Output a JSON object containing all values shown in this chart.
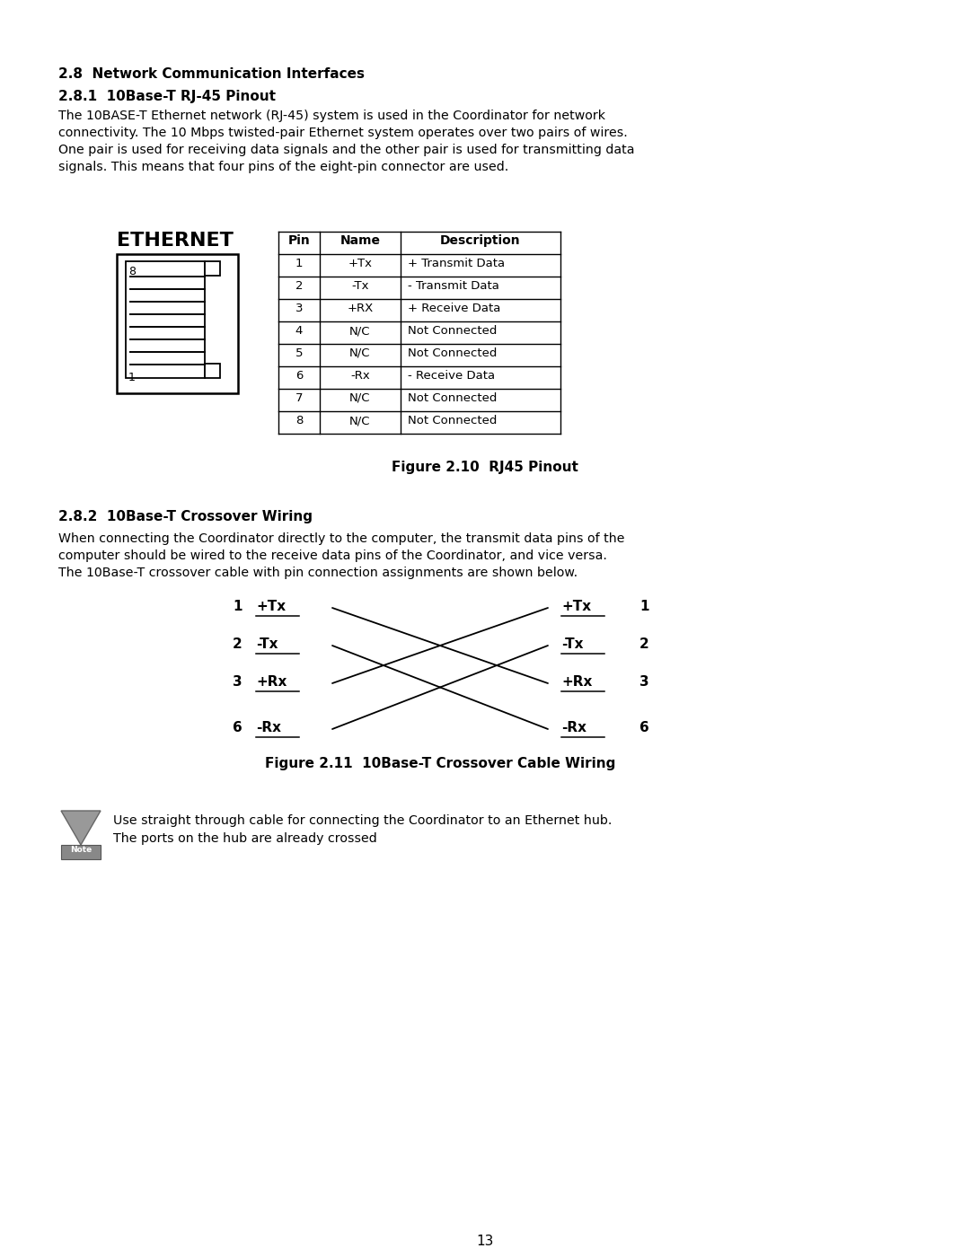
{
  "bg_color": "#ffffff",
  "text_color": "#000000",
  "page_number": "13",
  "section_28_title": "2.8  Network Communication Interfaces",
  "section_281_title": "2.8.1  10Base-T RJ-45 Pinout",
  "section_281_body": "The 10BASE-T Ethernet network (RJ-45) system is used in the Coordinator for network\nconnectivity. The 10 Mbps twisted-pair Ethernet system operates over two pairs of wires.\nOne pair is used for receiving data signals and the other pair is used for transmitting data\nsignals. This means that four pins of the eight-pin connector are used.",
  "ethernet_label": "ETHERNET",
  "table_headers": [
    "Pin",
    "Name",
    "Description"
  ],
  "table_rows": [
    [
      "1",
      "+Tx",
      "+ Transmit Data"
    ],
    [
      "2",
      "-Tx",
      "- Transmit Data"
    ],
    [
      "3",
      "+RX",
      "+ Receive Data"
    ],
    [
      "4",
      "N/C",
      "Not Connected"
    ],
    [
      "5",
      "N/C",
      "Not Connected"
    ],
    [
      "6",
      "-Rx",
      "- Receive Data"
    ],
    [
      "7",
      "N/C",
      "Not Connected"
    ],
    [
      "8",
      "N/C",
      "Not Connected"
    ]
  ],
  "figure_210_caption": "Figure 2.10  RJ45 Pinout",
  "section_282_title": "2.8.2  10Base-T Crossover Wiring",
  "section_282_body": "When connecting the Coordinator directly to the computer, the transmit data pins of the\ncomputer should be wired to the receive data pins of the Coordinator, and vice versa.\nThe 10Base-T crossover cable with pin connection assignments are shown below.",
  "figure_211_caption": "Figure 2.11  10Base-T Crossover Cable Wiring",
  "note_text1": "Use straight through cable for connecting the Coordinator to an Ethernet hub.",
  "note_text2": "The ports on the hub are already crossed"
}
